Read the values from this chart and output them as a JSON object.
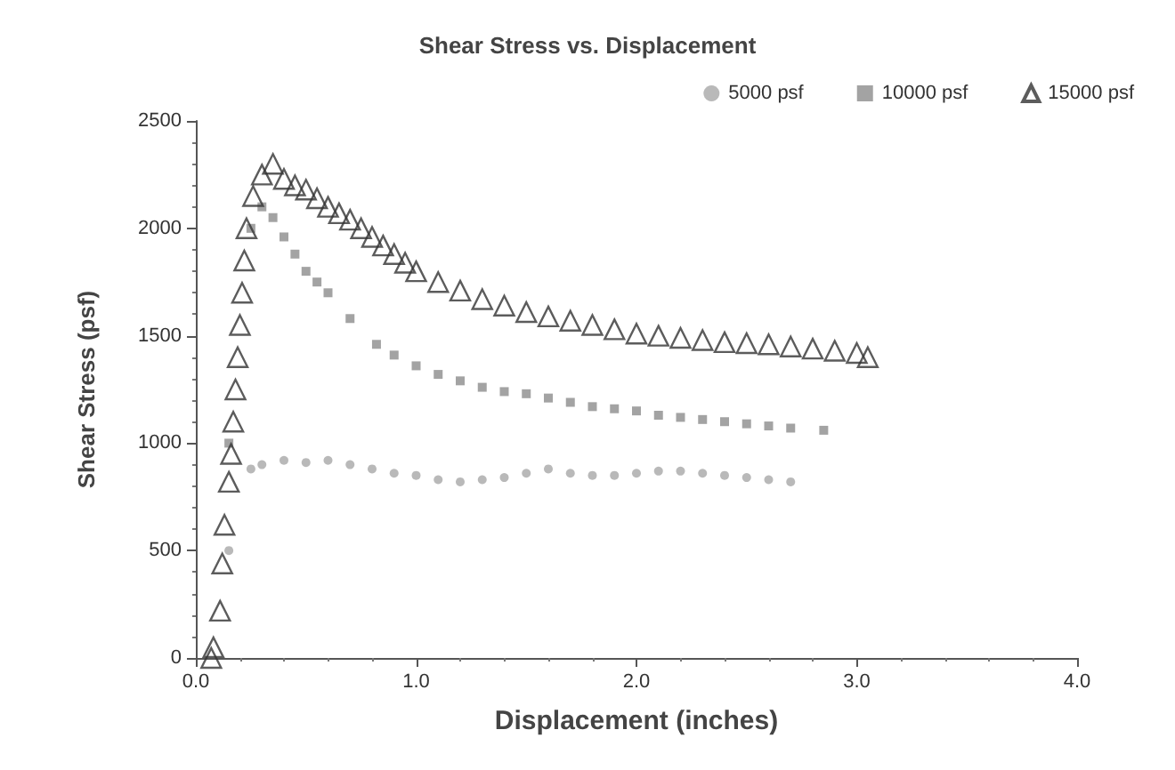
{
  "chart_data": {
    "type": "scatter",
    "title": "Shear Stress vs. Displacement",
    "xlabel": "Displacement (inches)",
    "ylabel": "Shear Stress (psf)",
    "xlim": [
      0,
      4
    ],
    "xticks": [
      {
        "value": 0,
        "label": "0.0"
      },
      {
        "value": 1,
        "label": "1.0"
      },
      {
        "value": 2,
        "label": "2.0"
      },
      {
        "value": 3,
        "label": "3.0"
      },
      {
        "value": 4,
        "label": "4.0"
      }
    ],
    "ylim": [
      0,
      2500
    ],
    "yticks": [
      0,
      500,
      1000,
      1500,
      2000,
      2500
    ],
    "grid": false,
    "legend": "top right",
    "series": [
      {
        "name": "5000 psf",
        "color": "#a8a8a8",
        "marker": "circle",
        "x": [
          0.15,
          0.25,
          0.3,
          0.4,
          0.5,
          0.6,
          0.7,
          0.8,
          0.9,
          1.0,
          1.1,
          1.2,
          1.3,
          1.4,
          1.5,
          1.6,
          1.7,
          1.8,
          1.9,
          2.0,
          2.1,
          2.2,
          2.3,
          2.4,
          2.5,
          2.6,
          2.7
        ],
        "values": [
          500,
          880,
          900,
          920,
          910,
          920,
          900,
          880,
          860,
          850,
          830,
          820,
          830,
          840,
          860,
          880,
          860,
          850,
          850,
          860,
          870,
          870,
          860,
          850,
          840,
          830,
          820
        ]
      },
      {
        "name": "10000 psf",
        "color": "#8c8c8c",
        "marker": "square",
        "x": [
          0.15,
          0.25,
          0.3,
          0.35,
          0.4,
          0.45,
          0.5,
          0.55,
          0.6,
          0.7,
          0.82,
          0.9,
          1.0,
          1.1,
          1.2,
          1.3,
          1.4,
          1.5,
          1.6,
          1.7,
          1.8,
          1.9,
          2.0,
          2.1,
          2.2,
          2.3,
          2.4,
          2.5,
          2.6,
          2.7,
          2.85
        ],
        "values": [
          1000,
          2000,
          2100,
          2050,
          1960,
          1880,
          1800,
          1750,
          1700,
          1580,
          1460,
          1410,
          1360,
          1320,
          1290,
          1260,
          1240,
          1230,
          1210,
          1190,
          1170,
          1160,
          1150,
          1130,
          1120,
          1110,
          1100,
          1090,
          1080,
          1070,
          1060
        ]
      },
      {
        "name": "15000 psf",
        "color": "#333333",
        "marker": "triangle",
        "x": [
          0.07,
          0.08,
          0.11,
          0.12,
          0.13,
          0.15,
          0.16,
          0.17,
          0.18,
          0.19,
          0.2,
          0.21,
          0.22,
          0.23,
          0.26,
          0.3,
          0.35,
          0.4,
          0.45,
          0.5,
          0.55,
          0.6,
          0.65,
          0.7,
          0.75,
          0.8,
          0.85,
          0.9,
          0.95,
          1.0,
          1.1,
          1.2,
          1.3,
          1.4,
          1.5,
          1.6,
          1.7,
          1.8,
          1.9,
          2.0,
          2.1,
          2.2,
          2.3,
          2.4,
          2.5,
          2.6,
          2.7,
          2.8,
          2.9,
          3.0,
          3.05
        ],
        "values": [
          0,
          50,
          220,
          440,
          620,
          820,
          950,
          1100,
          1250,
          1400,
          1550,
          1700,
          1850,
          2000,
          2150,
          2250,
          2300,
          2230,
          2200,
          2180,
          2140,
          2100,
          2070,
          2040,
          2000,
          1960,
          1920,
          1880,
          1840,
          1800,
          1750,
          1710,
          1670,
          1640,
          1610,
          1590,
          1570,
          1550,
          1530,
          1510,
          1500,
          1490,
          1480,
          1470,
          1465,
          1460,
          1450,
          1440,
          1430,
          1420,
          1400
        ]
      }
    ]
  }
}
